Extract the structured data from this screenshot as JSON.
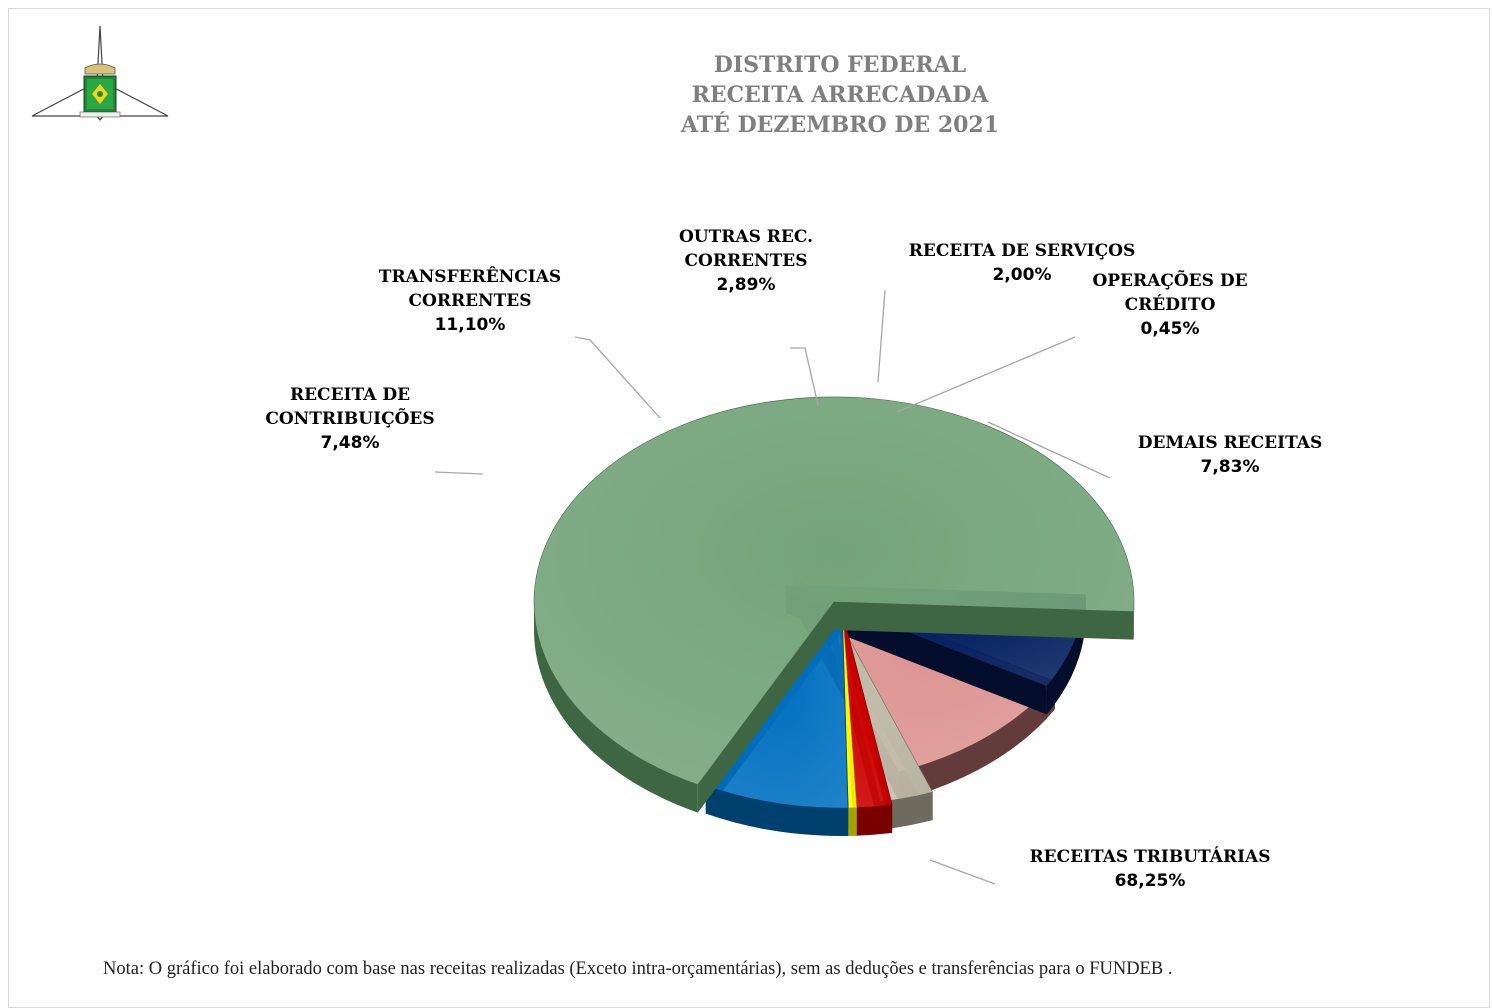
{
  "chart_data": {
    "type": "pie",
    "title": [
      "DISTRITO FEDERAL",
      "RECEITA ARRECADADA",
      "ATÉ DEZEMBRO DE 2021"
    ],
    "slices": [
      {
        "label": [
          "RECEITAS TRIBUTÁRIAS"
        ],
        "value": 68.25,
        "value_label": "68,25%",
        "color": "#74a47a",
        "side": "#3f6642"
      },
      {
        "label": [
          "RECEITA DE",
          "CONTRIBUIÇÕES"
        ],
        "value": 7.48,
        "value_label": "7,48%",
        "color": "#032060",
        "side": "#020e2c"
      },
      {
        "label": [
          "TRANSFERÊNCIAS",
          "CORRENTES"
        ],
        "value": 11.1,
        "value_label": "11,10%",
        "color": "#dd9593",
        "side": "#633b3a"
      },
      {
        "label": [
          "OUTRAS REC.",
          "CORRENTES"
        ],
        "value": 2.89,
        "value_label": "2,89%",
        "color": "#c3bdab",
        "side": "#6e6a5e"
      },
      {
        "label": [
          "RECEITA DE SERVIÇOS"
        ],
        "value": 2.0,
        "value_label": "2,00%",
        "color": "#cc0000",
        "side": "#7a0000"
      },
      {
        "label": [
          "OPERAÇÕES DE",
          "CRÉDITO"
        ],
        "value": 0.45,
        "value_label": "0,45%",
        "color": "#ffff00",
        "side": "#a3a300"
      },
      {
        "label": [
          "DEMAIS RECEITAS"
        ],
        "value": 7.83,
        "value_label": "7,83%",
        "color": "#0070c0",
        "side": "#00406e"
      }
    ]
  },
  "note": "Nota: O gráfico foi elaborado com base nas receitas realizadas (Exceto intra-orçamentárias), sem as deduções e transferências para o FUNDEB ."
}
